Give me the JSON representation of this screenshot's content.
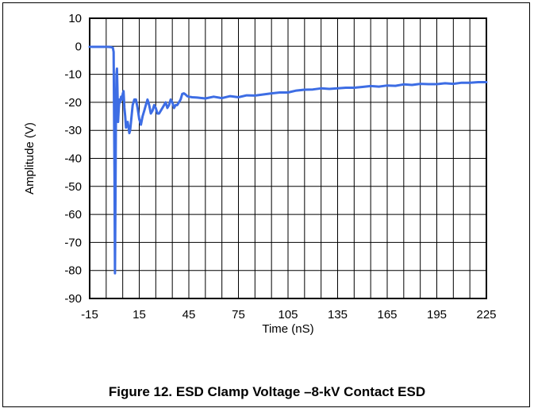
{
  "caption": "Figure 12. ESD Clamp Voltage –8-kV Contact ESD",
  "chart_data": {
    "type": "line",
    "title": "",
    "xlabel": "Time (nS)",
    "ylabel": "Amplitude (V)",
    "xlim": [
      -15,
      225
    ],
    "ylim": [
      -90,
      10
    ],
    "x_ticks": [
      -15,
      15,
      45,
      75,
      105,
      135,
      165,
      195,
      225
    ],
    "x_tick_labels": [
      "-15",
      "15",
      "45",
      "75",
      "105",
      "135",
      "165",
      "195",
      "225"
    ],
    "x_grid_step": 10,
    "y_ticks": [
      10,
      0,
      -10,
      -20,
      -30,
      -40,
      -50,
      -60,
      -70,
      -80,
      -90
    ],
    "y_tick_labels": [
      "10",
      "0",
      "-10",
      "-20",
      "-30",
      "-40",
      "-50",
      "-60",
      "-70",
      "-80",
      "-90"
    ],
    "grid": true,
    "line_color": "#3d6de4",
    "series": [
      {
        "x": [
          -15,
          -12,
          -8,
          -4,
          -2,
          -1,
          -0.5,
          0,
          0.3,
          0.6,
          0.9,
          1.2,
          1.5,
          1.8,
          2.2,
          2.6,
          3,
          3.5,
          4,
          4.5,
          5,
          5.5,
          6,
          6.5,
          7,
          7.5,
          8,
          8.5,
          9,
          9.5,
          10,
          11,
          12,
          13,
          14,
          15,
          16,
          17,
          18,
          19,
          20,
          21,
          22,
          23,
          24,
          25,
          26,
          27,
          28,
          29,
          30,
          31,
          32,
          33,
          34,
          35,
          36,
          37,
          38,
          39,
          40,
          41,
          42,
          43,
          44,
          45,
          47,
          50,
          55,
          60,
          65,
          70,
          75,
          80,
          85,
          90,
          95,
          100,
          105,
          110,
          115,
          120,
          125,
          130,
          135,
          140,
          145,
          150,
          155,
          160,
          165,
          170,
          175,
          180,
          185,
          190,
          195,
          200,
          205,
          210,
          215,
          220,
          225
        ],
        "y": [
          -0.2,
          -0.2,
          -0.2,
          -0.2,
          -0.3,
          -0.5,
          -2,
          -45,
          -81,
          -55,
          -25,
          -10,
          -8,
          -15,
          -27,
          -22,
          -19,
          -20,
          -18,
          -19,
          -17,
          -16,
          -22,
          -25,
          -29,
          -28,
          -27,
          -29,
          -31,
          -30,
          -27,
          -21,
          -19,
          -19,
          -22,
          -26,
          -28,
          -25,
          -23,
          -21,
          -19,
          -21,
          -24,
          -23,
          -21,
          -22,
          -24,
          -24,
          -23,
          -22,
          -21,
          -20,
          -22,
          -21,
          -19,
          -20,
          -22,
          -21,
          -21,
          -20,
          -19,
          -17,
          -16.8,
          -17.2,
          -17.8,
          -18,
          -18.2,
          -18.3,
          -18.6,
          -18,
          -18.5,
          -17.8,
          -18.2,
          -17.5,
          -17.6,
          -17.2,
          -16.8,
          -16.5,
          -16.5,
          -15.8,
          -15.5,
          -15.4,
          -15,
          -15.2,
          -15,
          -14.8,
          -14.8,
          -14.5,
          -14.2,
          -14.4,
          -14,
          -14.1,
          -13.6,
          -13.8,
          -13.4,
          -13.5,
          -13.5,
          -13.2,
          -13.4,
          -13,
          -13,
          -12.8,
          -12.8
        ]
      }
    ]
  }
}
